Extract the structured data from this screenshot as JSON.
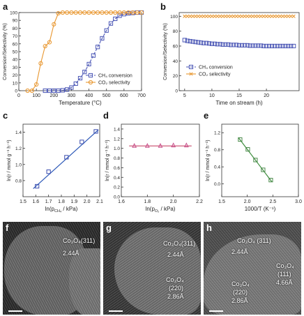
{
  "figure": {
    "panels": [
      "a",
      "b",
      "c",
      "d",
      "e",
      "f",
      "g",
      "h"
    ],
    "tem": [
      {
        "panel": "f",
        "labels": [
          {
            "name": "plane-311",
            "text": "Co₃O₄(311)"
          },
          {
            "name": "spacing-311",
            "text": "2.44Å"
          }
        ]
      },
      {
        "panel": "g",
        "labels": [
          {
            "name": "plane-311",
            "text": "Co₃O₄(311)"
          },
          {
            "name": "spacing-311",
            "text": "2.44Å"
          },
          {
            "name": "phase-co3o4",
            "text": "Co₃O₄"
          },
          {
            "name": "plane-220",
            "text": "(220)"
          },
          {
            "name": "spacing-220",
            "text": "2.86Å"
          }
        ]
      },
      {
        "panel": "h",
        "labels": [
          {
            "name": "plane-311",
            "text": "Co₃O₄ (311)"
          },
          {
            "name": "spacing-311",
            "text": "2.44Å"
          },
          {
            "name": "phase-co3o4-a",
            "text": "Co₃O₄"
          },
          {
            "name": "plane-111",
            "text": "(111)"
          },
          {
            "name": "spacing-111",
            "text": "4.66Å"
          },
          {
            "name": "phase-co3o4-b",
            "text": "Co₃O₄"
          },
          {
            "name": "plane-220",
            "text": "(220)"
          },
          {
            "name": "spacing-220",
            "text": "2.86Å"
          }
        ]
      }
    ]
  },
  "chart_data": [
    {
      "panel": "a",
      "type": "line",
      "xlabel": "Temperature (°C)",
      "ylabel": "Conversion/Selectivity (%)",
      "xlim": [
        0,
        700
      ],
      "ylim": [
        0,
        100
      ],
      "xticks": [
        "0",
        "100",
        "200",
        "300",
        "400",
        "500",
        "600",
        "700"
      ],
      "yticks": [
        "0",
        "10",
        "20",
        "30",
        "40",
        "50",
        "60",
        "70",
        "80",
        "90",
        "100"
      ],
      "legend_position": "bottom-right",
      "colors": {
        "ch4": "#4a56b5",
        "co2": "#e8962e"
      },
      "series": [
        {
          "name": "CH₄ conversion",
          "key": "ch4",
          "marker": "square",
          "x": [
            150,
            175,
            200,
            225,
            250,
            275,
            300,
            325,
            350,
            375,
            400,
            425,
            450,
            475,
            500,
            525,
            550,
            575,
            600,
            625,
            650,
            675,
            700
          ],
          "y": [
            0,
            0,
            0,
            0,
            0.5,
            1.5,
            4,
            9,
            16,
            24,
            34,
            45,
            56,
            67,
            77,
            86,
            92,
            96,
            98,
            99,
            99.5,
            100,
            100
          ]
        },
        {
          "name": "CO₂ selectivity",
          "key": "co2",
          "marker": "circle",
          "x": [
            50,
            75,
            100,
            125,
            150,
            175,
            200,
            225,
            250,
            275,
            300,
            325,
            350,
            375,
            400,
            425,
            450,
            475,
            500,
            525,
            550,
            575,
            600,
            625,
            650,
            675,
            700
          ],
          "y": [
            0,
            0,
            8,
            35,
            57,
            62,
            85,
            99,
            100,
            100,
            100,
            100,
            100,
            100,
            100,
            100,
            100,
            100,
            100,
            100,
            100,
            100,
            100,
            100,
            100,
            100,
            100
          ]
        }
      ]
    },
    {
      "panel": "b",
      "type": "scatter",
      "xlabel": "Time on stream (h)",
      "ylabel": "Conversion/Selectivity (%)",
      "xlim": [
        4,
        26
      ],
      "ylim": [
        0,
        105
      ],
      "xticks": [
        "5",
        "10",
        "15",
        "20"
      ],
      "yticks": [
        "0",
        "20",
        "40",
        "60",
        "80",
        "100"
      ],
      "legend_position": "bottom-left",
      "colors": {
        "ch4": "#4a56b5",
        "co2": "#e8962e"
      },
      "series": [
        {
          "name": "CH₄ conversion",
          "key": "ch4",
          "marker": "square",
          "x": [
            5,
            5.5,
            6,
            6.5,
            7,
            7.5,
            8,
            8.5,
            9,
            9.5,
            10,
            10.5,
            11,
            11.5,
            12,
            12.5,
            13,
            13.5,
            14,
            14.5,
            15,
            15.5,
            16,
            16.5,
            17,
            17.5,
            18,
            18.5,
            19,
            19.5,
            20,
            20.5,
            21,
            21.5,
            22,
            22.5,
            23,
            23.5,
            24,
            24.5,
            25
          ],
          "y": [
            68,
            67,
            66.5,
            66,
            65.5,
            65,
            64.5,
            64,
            64,
            63.5,
            63,
            63,
            62.5,
            62.5,
            62,
            62,
            62,
            61.5,
            61.5,
            61.5,
            61,
            61,
            61,
            61,
            60.5,
            60.5,
            60.5,
            60.5,
            60.5,
            60,
            60,
            60,
            60,
            60,
            60,
            60,
            60,
            60,
            60,
            60,
            60
          ]
        },
        {
          "name": "CO₂ selectivity",
          "key": "co2",
          "marker": "x",
          "x": [
            5,
            5.5,
            6,
            6.5,
            7,
            7.5,
            8,
            8.5,
            9,
            9.5,
            10,
            10.5,
            11,
            11.5,
            12,
            12.5,
            13,
            13.5,
            14,
            14.5,
            15,
            15.5,
            16,
            16.5,
            17,
            17.5,
            18,
            18.5,
            19,
            19.5,
            20,
            20.5,
            21,
            21.5,
            22,
            22.5,
            23,
            23.5,
            24,
            24.5,
            25
          ],
          "y": [
            100,
            100,
            100,
            100,
            100,
            100,
            100,
            100,
            100,
            100,
            100,
            100,
            100,
            100,
            100,
            100,
            100,
            100,
            100,
            100,
            100,
            100,
            100,
            100,
            100,
            100,
            100,
            100,
            100,
            100,
            100,
            100,
            100,
            100,
            100,
            100,
            100,
            100,
            100,
            100,
            100
          ]
        }
      ]
    },
    {
      "panel": "c",
      "type": "scatter",
      "xlabel": "ln(p",
      "xlabel_sub": "CH₄",
      "xlabel_tail": " / kPa)",
      "ylabel": "ln(r / mmol g⁻¹ h⁻¹)",
      "xlim": [
        1.5,
        2.1
      ],
      "ylim": [
        0.6,
        1.5
      ],
      "xticks": [
        "1.5",
        "1.6",
        "1.7",
        "1.8",
        "1.9",
        "2.0",
        "2.1"
      ],
      "yticks": [
        "0.8",
        "1.0",
        "1.2",
        "1.4"
      ],
      "colors": {
        "points": "#3a4cae",
        "fit": "#2d59b8"
      },
      "series": [
        {
          "marker": "square",
          "x": [
            1.61,
            1.7,
            1.84,
            1.96,
            2.07
          ],
          "y": [
            0.73,
            0.91,
            1.09,
            1.28,
            1.41
          ]
        }
      ],
      "fit": {
        "x": [
          1.58,
          2.09
        ],
        "y": [
          0.7,
          1.43
        ]
      }
    },
    {
      "panel": "d",
      "type": "scatter",
      "xlabel": "ln(p",
      "xlabel_sub": "O₂",
      "xlabel_tail": " / kPa)",
      "ylabel": "ln(r / mmol g⁻¹ h⁻¹)",
      "xlim": [
        1.6,
        2.2
      ],
      "ylim": [
        0.0,
        1.5
      ],
      "xticks": [
        "1.6",
        "1.8",
        "2.0",
        "2.2"
      ],
      "yticks": [
        "0.0",
        "0.2",
        "0.4",
        "0.6",
        "0.8",
        "1.0",
        "1.2",
        "1.4"
      ],
      "colors": {
        "points": "#c8508c",
        "fit": "#c84a6a"
      },
      "series": [
        {
          "marker": "triangle",
          "x": [
            1.7,
            1.8,
            1.9,
            2.0,
            2.1
          ],
          "y": [
            1.05,
            1.05,
            1.05,
            1.06,
            1.06
          ]
        }
      ],
      "fit": {
        "x": [
          1.66,
          2.14
        ],
        "y": [
          1.05,
          1.05
        ]
      }
    },
    {
      "panel": "e",
      "type": "scatter",
      "xlabel": "1000/T (K⁻¹)",
      "ylabel": "ln(r / mmol g⁻¹ h⁻¹)",
      "xlim": [
        1.5,
        3.0
      ],
      "ylim": [
        -0.3,
        1.4
      ],
      "xticks": [
        "1.5",
        "2.0",
        "2.5",
        "3.0"
      ],
      "yticks": [
        "0.0",
        "0.4",
        "0.8",
        "1.2"
      ],
      "colors": {
        "points": "#4a8a4a",
        "fit": "#3c8c3c"
      },
      "series": [
        {
          "marker": "square",
          "x": [
            1.86,
            2.01,
            2.16,
            2.31,
            2.46
          ],
          "y": [
            1.04,
            0.81,
            0.56,
            0.33,
            0.09
          ]
        }
      ],
      "fit": {
        "x": [
          1.83,
          2.48
        ],
        "y": [
          1.08,
          0.05
        ]
      }
    }
  ]
}
